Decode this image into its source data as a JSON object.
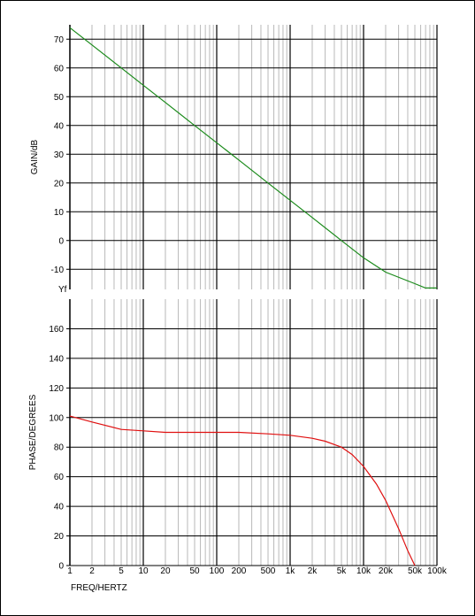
{
  "chart_data": [
    {
      "type": "line",
      "ylabel": "GAIN/dB",
      "xscale": "log",
      "xlim": [
        1,
        100000
      ],
      "ylim": [
        -17,
        75
      ],
      "yticks": [
        "70",
        "60",
        "50",
        "40",
        "30",
        "20",
        "10",
        "0",
        "-10"
      ],
      "ytick_values": [
        70,
        60,
        50,
        40,
        30,
        20,
        10,
        0,
        -10
      ],
      "corner_label": "Yf",
      "grid": true,
      "series": [
        {
          "color": "#1a8a1a",
          "x": [
            1,
            2,
            5,
            10,
            20,
            50,
            100,
            200,
            500,
            1000,
            2000,
            5000,
            10000,
            20000,
            50000,
            70000,
            100000
          ],
          "y": [
            74,
            68,
            60,
            54,
            48,
            40,
            34,
            28,
            20,
            14,
            8,
            0,
            -6,
            -11,
            -15,
            -16.5,
            -16.5
          ]
        }
      ]
    },
    {
      "type": "line",
      "ylabel": "PHASE/DEGREES",
      "xlabel": "FREQ/HERTZ",
      "xscale": "log",
      "xlim": [
        1,
        100000
      ],
      "ylim": [
        0,
        180
      ],
      "yticks": [
        "160",
        "140",
        "120",
        "100",
        "80",
        "60",
        "40",
        "20",
        "0"
      ],
      "ytick_values": [
        160,
        140,
        120,
        100,
        80,
        60,
        40,
        20,
        0
      ],
      "xticks": [
        "1",
        "2",
        "5",
        "10",
        "20",
        "50",
        "100",
        "200",
        "500",
        "1k",
        "2k",
        "5k",
        "10k",
        "20k",
        "50k",
        "100k"
      ],
      "xtick_values": [
        1,
        2,
        5,
        10,
        20,
        50,
        100,
        200,
        500,
        1000,
        2000,
        5000,
        10000,
        20000,
        50000,
        100000
      ],
      "grid": true,
      "series": [
        {
          "color": "#e01010",
          "x": [
            1,
            2,
            5,
            10,
            20,
            50,
            100,
            200,
            500,
            1000,
            2000,
            3000,
            5000,
            7000,
            10000,
            15000,
            20000,
            30000,
            40000,
            50000
          ],
          "y": [
            101,
            97,
            92,
            91,
            90,
            90,
            90,
            90,
            89,
            88,
            86,
            84,
            80,
            75,
            67,
            55,
            44,
            25,
            10,
            0
          ]
        }
      ]
    }
  ]
}
